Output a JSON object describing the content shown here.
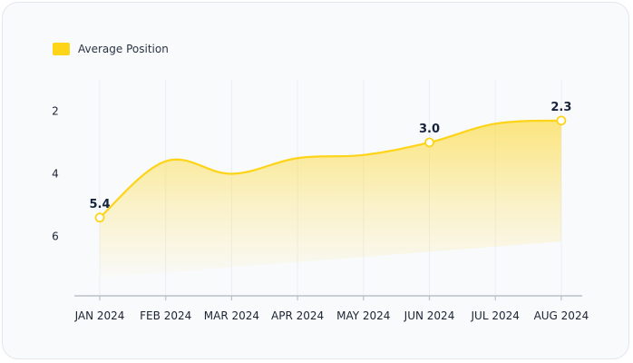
{
  "legend": {
    "label": "Average Position",
    "color": "#FDD418"
  },
  "chart_data": {
    "type": "area",
    "title": "",
    "xlabel": "",
    "ylabel": "",
    "categories": [
      "JAN 2024",
      "FEB 2024",
      "MAR 2024",
      "APR 2024",
      "MAY 2024",
      "JUN 2024",
      "JUL 2024",
      "AUG 2024"
    ],
    "series": [
      {
        "name": "Average Position",
        "values": [
          5.4,
          3.6,
          4.0,
          3.5,
          3.4,
          3.0,
          2.4,
          2.3
        ],
        "color": "#FDD418"
      }
    ],
    "y_ticks": [
      2,
      4,
      6
    ],
    "ylim": [
      1.0,
      7.9
    ],
    "y_reversed": true,
    "grid": "vertical",
    "legend_position": "top-left",
    "data_labels": [
      {
        "index": 0,
        "text": "5.4"
      },
      {
        "index": 5,
        "text": "3.0"
      },
      {
        "index": 7,
        "text": "2.3"
      }
    ]
  }
}
